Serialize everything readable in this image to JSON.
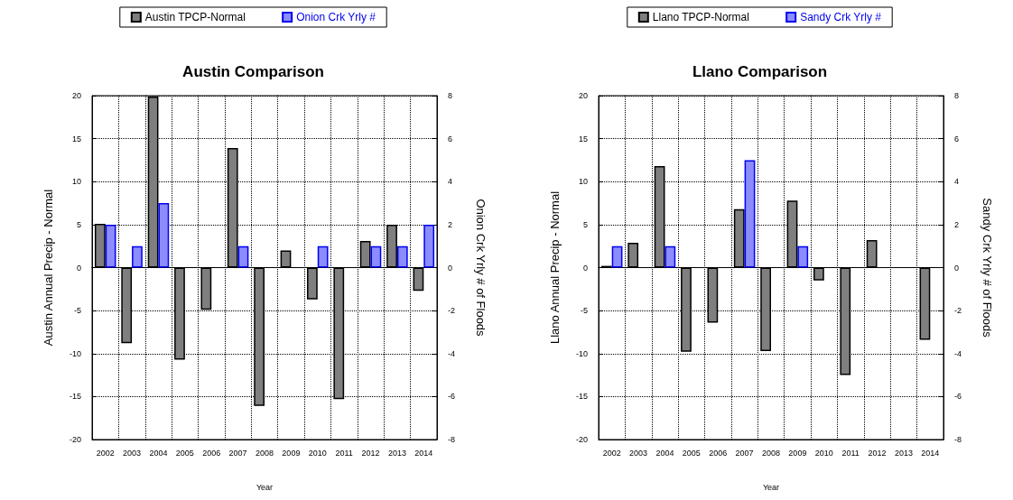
{
  "chart_data": [
    {
      "type": "bar",
      "title": "Austin Comparison",
      "xlabel": "Year",
      "ylabel": "Austin Annual Precip - Normal",
      "y2label": "Onion Crk Yrly # of Floods",
      "categories": [
        "2002",
        "2003",
        "2004",
        "2005",
        "2006",
        "2007",
        "2008",
        "2009",
        "2010",
        "2011",
        "2012",
        "2013",
        "2014"
      ],
      "series": [
        {
          "name": "Austin TPCP-Normal",
          "color": "#7f7f7f",
          "values": [
            5.1,
            -8.8,
            19.9,
            -10.7,
            -4.9,
            13.9,
            -16.1,
            2.0,
            -3.7,
            -15.3,
            3.1,
            5.0,
            -2.7
          ]
        },
        {
          "name": "Onion Crk Yrly #",
          "color": "#8c8cff",
          "axis": "y2",
          "values": [
            2,
            1,
            3,
            null,
            null,
            1,
            null,
            null,
            1,
            null,
            1,
            1,
            2
          ]
        }
      ],
      "ylim": [
        -20,
        20
      ],
      "yticks": [
        -20,
        -15,
        -10,
        -5,
        0,
        5,
        10,
        15,
        20
      ],
      "y2lim": [
        -8,
        8
      ],
      "y2ticks": [
        -8,
        -6,
        -4,
        -2,
        0,
        2,
        4,
        6,
        8
      ],
      "grid": true,
      "legend": "top"
    },
    {
      "type": "bar",
      "title": "Llano Comparison",
      "xlabel": "Year",
      "ylabel": "Llano Annual Precip - Normal",
      "y2label": "Sandy Crk Yrly # of Floods",
      "categories": [
        "2002",
        "2003",
        "2004",
        "2005",
        "2006",
        "2007",
        "2008",
        "2009",
        "2010",
        "2011",
        "2012",
        "2013",
        "2014"
      ],
      "series": [
        {
          "name": "Llano TPCP-Normal",
          "color": "#7f7f7f",
          "values": [
            0.2,
            2.9,
            11.8,
            -9.8,
            -6.4,
            6.8,
            -9.7,
            7.8,
            -1.5,
            -12.5,
            3.2,
            null,
            -8.4
          ]
        },
        {
          "name": "Sandy Crk Yrly #",
          "color": "#8c8cff",
          "axis": "y2",
          "values": [
            1,
            null,
            1,
            null,
            null,
            5,
            null,
            1,
            null,
            null,
            null,
            null,
            null
          ]
        }
      ],
      "ylim": [
        -20,
        20
      ],
      "yticks": [
        -20,
        -15,
        -10,
        -5,
        0,
        5,
        10,
        15,
        20
      ],
      "y2lim": [
        -8,
        8
      ],
      "y2ticks": [
        -8,
        -6,
        -4,
        -2,
        0,
        2,
        4,
        6,
        8
      ],
      "grid": true,
      "legend": "top"
    }
  ]
}
